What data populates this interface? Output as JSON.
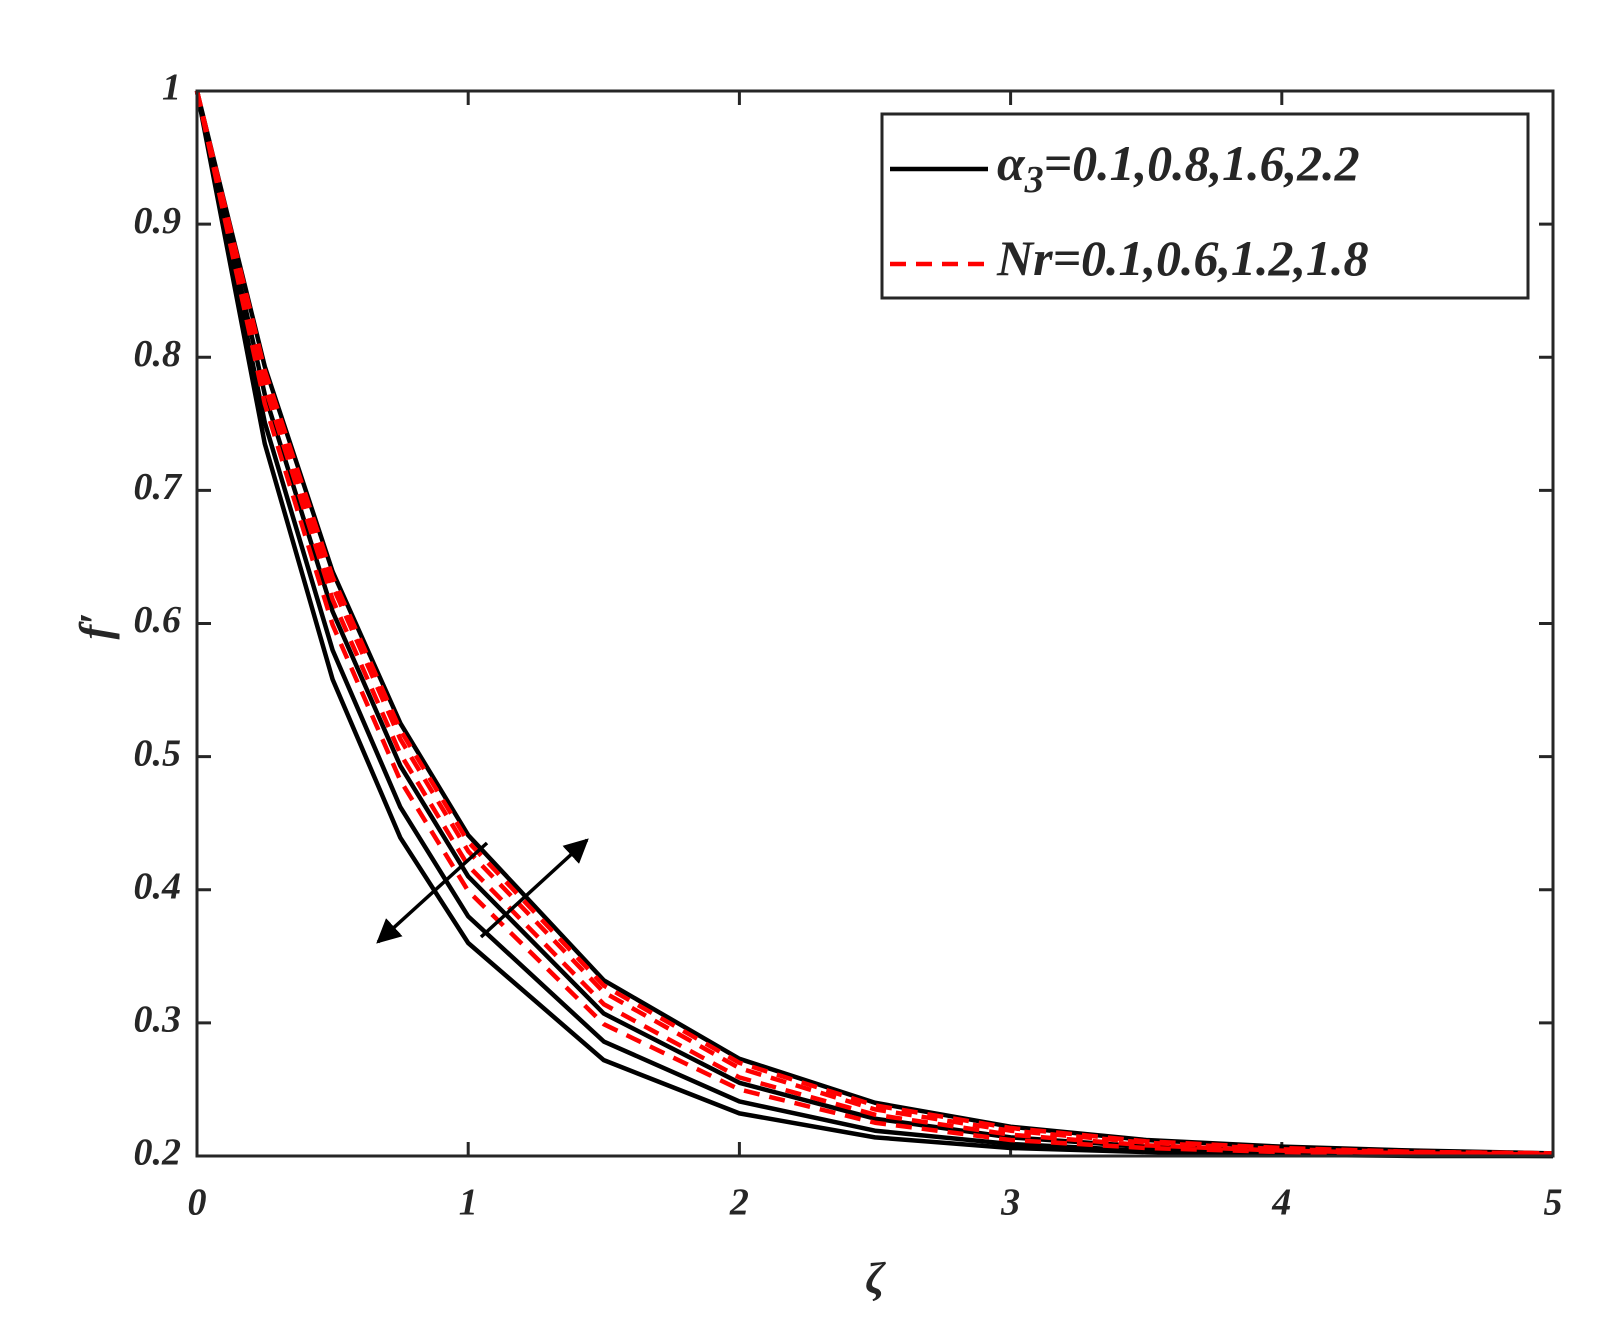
{
  "chart_data": {
    "type": "line",
    "x_label": "ζ",
    "y_label": "f′",
    "x": [
      0,
      0.25,
      0.5,
      0.75,
      1,
      1.5,
      2,
      2.5,
      3,
      3.5,
      4,
      4.5,
      5
    ],
    "series": [
      {
        "color": "#000000",
        "dash": false,
        "values": [
          1,
          0.735,
          0.558,
          0.439,
          0.36,
          0.272,
          0.232,
          0.214,
          0.206,
          0.203,
          0.201,
          0.2,
          0.2
        ]
      },
      {
        "color": "#000000",
        "dash": false,
        "values": [
          1,
          0.751,
          0.58,
          0.462,
          0.38,
          0.286,
          0.241,
          0.219,
          0.209,
          0.204,
          0.202,
          0.201,
          0.2
        ]
      },
      {
        "color": "#000000",
        "dash": false,
        "values": [
          1,
          0.772,
          0.609,
          0.493,
          0.41,
          0.307,
          0.255,
          0.228,
          0.214,
          0.207,
          0.204,
          0.202,
          0.201
        ]
      },
      {
        "color": "#000000",
        "dash": false,
        "values": [
          1,
          0.793,
          0.639,
          0.525,
          0.441,
          0.332,
          0.273,
          0.24,
          0.222,
          0.212,
          0.207,
          0.204,
          0.202
        ]
      },
      {
        "color": "#ff0000",
        "dash": true,
        "values": [
          1,
          0.765,
          0.599,
          0.482,
          0.399,
          0.299,
          0.25,
          0.225,
          0.212,
          0.206,
          0.203,
          0.202,
          0.201
        ]
      },
      {
        "color": "#ff0000",
        "dash": true,
        "values": [
          1,
          0.778,
          0.618,
          0.502,
          0.418,
          0.314,
          0.259,
          0.231,
          0.216,
          0.208,
          0.204,
          0.202,
          0.201
        ]
      },
      {
        "color": "#ff0000",
        "dash": true,
        "values": [
          1,
          0.785,
          0.628,
          0.513,
          0.429,
          0.323,
          0.266,
          0.235,
          0.219,
          0.21,
          0.205,
          0.203,
          0.202
        ]
      },
      {
        "color": "#ff0000",
        "dash": true,
        "values": [
          1,
          0.79,
          0.635,
          0.52,
          0.436,
          0.328,
          0.27,
          0.238,
          0.221,
          0.211,
          0.206,
          0.203,
          0.202
        ]
      }
    ],
    "legend": [
      {
        "color": "#000000",
        "dash": false,
        "symbol": "α",
        "subscript": "3",
        "text": "=0.1,0.8,1.6,2.2"
      },
      {
        "color": "#ff0000",
        "dash": true,
        "text": "Nr=0.1,0.6,1.2,1.8"
      }
    ],
    "xlim": [
      0,
      5
    ],
    "ylim": [
      0.2,
      1
    ],
    "xticks": [
      0,
      1,
      2,
      3,
      4,
      5
    ],
    "yticks": [
      0.2,
      0.3,
      0.4,
      0.5,
      0.6,
      0.7,
      0.8,
      0.9,
      1
    ]
  }
}
